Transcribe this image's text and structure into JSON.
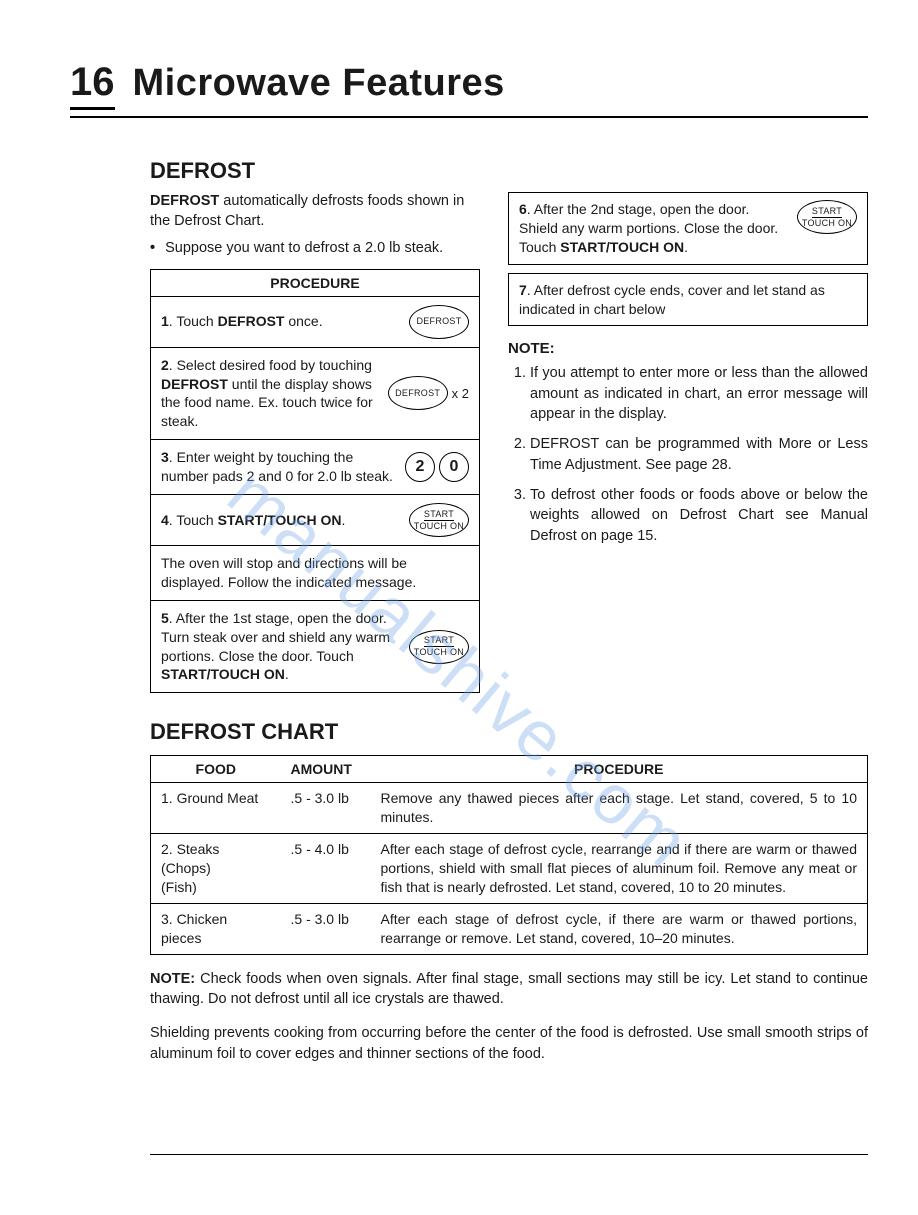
{
  "page_number": "16",
  "page_title": "Microwave Features",
  "watermark": "manualshive.com",
  "defrost": {
    "heading": "DEFROST",
    "intro_prefix": "DEFROST",
    "intro_rest": " automatically defrosts foods shown in the Defrost Chart.",
    "bullet": "Suppose you want to defrost a 2.0 lb steak.",
    "procedure_header": "PROCEDURE",
    "steps": [
      {
        "num": "1",
        "plain_a": ". Touch ",
        "bold": "DEFROST",
        "plain_b": " once.",
        "btn_type": "defrost"
      },
      {
        "num": "2",
        "plain_a": ". Select desired food by touching ",
        "bold": "DEFROST",
        "plain_b": " until the display shows the food name. Ex. touch twice for steak.",
        "btn_type": "defrost_x2"
      },
      {
        "num": "3",
        "plain_a": ". Enter weight by touching the number pads 2 and 0 for 2.0 lb steak.",
        "bold": "",
        "plain_b": "",
        "btn_type": "num_20"
      },
      {
        "num": "4",
        "plain_a": ". Touch ",
        "bold": "START/TOUCH ON",
        "plain_b": ".",
        "btn_type": "start"
      },
      {
        "num": "",
        "plain_a": "The oven will stop and directions will be displayed. Follow the indicated message.",
        "bold": "",
        "plain_b": "",
        "btn_type": ""
      },
      {
        "num": "5",
        "plain_a": ". After the 1st stage, open the door. Turn steak over and shield any warm portions. Close the door. Touch ",
        "bold": "START/TOUCH ON",
        "plain_b": ".",
        "btn_type": "start"
      }
    ],
    "right_steps": [
      {
        "num": "6",
        "plain_a": ". After the 2nd stage, open the door. Shield any warm portions. Close the door. Touch ",
        "bold": "START/TOUCH ON",
        "plain_b": ".",
        "btn_type": "start"
      },
      {
        "num": "7",
        "plain_a": ". After defrost cycle ends, cover and let stand as indicated in chart below",
        "bold": "",
        "plain_b": "",
        "btn_type": ""
      }
    ],
    "note_heading": "NOTE:",
    "notes": [
      "If you attempt to enter more or less than the allowed amount as indicated in chart, an error message will appear in the display.",
      "DEFROST can be programmed with More or Less Time Adjustment. See page 28.",
      "To defrost other foods or foods above or below the weights allowed on Defrost Chart see Manual Defrost on page 15."
    ]
  },
  "buttons": {
    "defrost_label": "DEFROST",
    "start_line1": "START",
    "start_line2": "TOUCH ON",
    "num2": "2",
    "num0": "0",
    "x2": "x 2"
  },
  "chart": {
    "heading": "DEFROST CHART",
    "columns": [
      "FOOD",
      "AMOUNT",
      "PROCEDURE"
    ],
    "rows": [
      {
        "food": "1. Ground Meat",
        "amount": ".5 - 3.0 lb",
        "procedure": "Remove any thawed pieces after each stage. Let stand, covered, 5 to 10 minutes."
      },
      {
        "food": "2. Steaks\n    (Chops)\n    (Fish)",
        "amount": ".5 - 4.0 lb",
        "procedure": "After each stage of defrost cycle, rearrange and if there are warm or thawed portions, shield with small flat pieces of aluminum foil. Remove any meat or fish that is nearly defrosted. Let stand, covered, 10 to 20 minutes."
      },
      {
        "food": "3. Chicken pieces",
        "amount": ".5 - 3.0 lb",
        "procedure": "After each stage of defrost cycle, if there are warm or thawed portions, rearrange or remove. Let stand, covered, 10–20 minutes."
      }
    ]
  },
  "bottom_note_bold": "NOTE:",
  "bottom_note_rest": " Check foods when oven signals. After final stage, small sections may still be icy. Let stand to continue thawing. Do not defrost until all ice crystals are thawed.",
  "bottom_para2": "Shielding prevents cooking from occurring before the center of the food is defrosted. Use small smooth strips of aluminum foil to cover edges and thinner sections of the food."
}
